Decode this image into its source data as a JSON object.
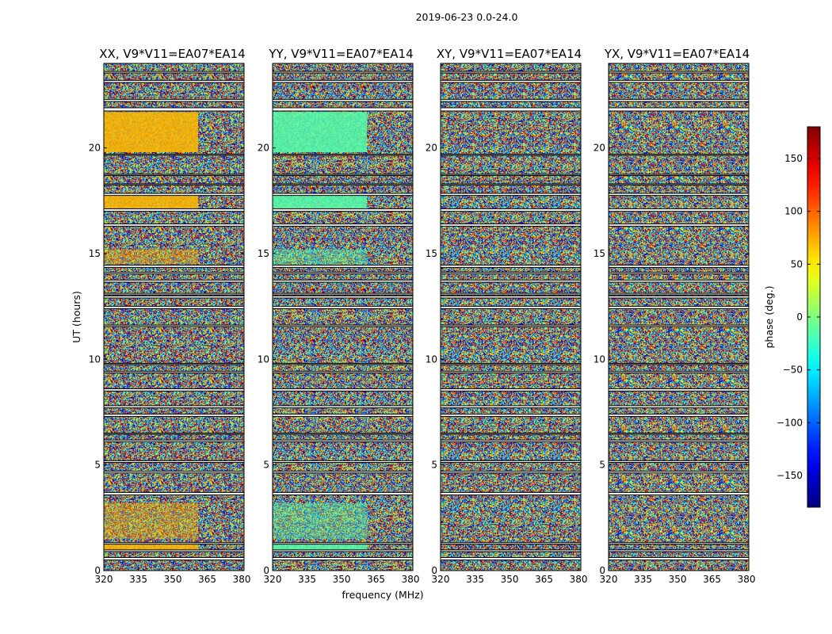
{
  "figure": {
    "title": "2019-06-23 0.0-24.0"
  },
  "chart_data": {
    "type": "heatmap",
    "title": "2019-06-23 0.0-24.0",
    "xlabel": "frequency (MHz)",
    "ylabel": "UT (hours)",
    "xlim": [
      320,
      381
    ],
    "ylim": [
      0,
      24
    ],
    "xticks": [
      320,
      335,
      350,
      365,
      380
    ],
    "xtick_labels": [
      "320",
      "335",
      "350",
      "365",
      "380"
    ],
    "yticks": [
      0,
      5,
      10,
      15,
      20
    ],
    "ytick_labels": [
      "0",
      "5",
      "10",
      "15",
      "20"
    ],
    "panels": [
      {
        "title": "XX, V9*V11=EA07*EA14",
        "pol": "XX"
      },
      {
        "title": "YY, V9*V11=EA07*EA14",
        "pol": "YY"
      },
      {
        "title": "XY, V9*V11=EA07*EA14",
        "pol": "XY"
      },
      {
        "title": "YX, V9*V11=EA07*EA14",
        "pol": "YX"
      }
    ],
    "colorbar": {
      "label": "phase (deg.)",
      "range": [
        -180,
        180
      ],
      "ticks": [
        -150,
        -100,
        -50,
        0,
        50,
        100,
        150
      ],
      "tick_labels": [
        "−150",
        "−100",
        "−50",
        "0",
        "50",
        "100",
        "150"
      ],
      "colormap": "jet"
    },
    "coherent_phase_deg": {
      "XX": 70,
      "YY": -15
    },
    "coherent_time_ranges_ut": [
      [
        0.9,
        1.25
      ],
      [
        17.1,
        17.75
      ],
      [
        19.8,
        21.7
      ]
    ],
    "partial_coherent_time_ranges_ut": [
      [
        1.5,
        3.2
      ],
      [
        14.5,
        15.2
      ]
    ],
    "coherent_freq_range_mhz": [
      320,
      361
    ],
    "flag_gaps_ut": [
      [
        0.5,
        0.62
      ],
      [
        0.9,
        0.98
      ],
      [
        1.25,
        1.32
      ],
      [
        3.58,
        3.7
      ],
      [
        4.62,
        4.7
      ],
      [
        5.12,
        5.2
      ],
      [
        6.1,
        6.18
      ],
      [
        6.45,
        6.5
      ],
      [
        7.3,
        7.4
      ],
      [
        7.7,
        7.8
      ],
      [
        8.5,
        8.6
      ],
      [
        9.35,
        9.42
      ],
      [
        9.75,
        9.8
      ],
      [
        11.55,
        11.62
      ],
      [
        12.4,
        12.5
      ],
      [
        12.9,
        13.0
      ],
      [
        13.05,
        13.12
      ],
      [
        13.65,
        13.75
      ],
      [
        14.05,
        14.12
      ],
      [
        14.35,
        14.45
      ],
      [
        16.3,
        16.4
      ],
      [
        17.0,
        17.12
      ],
      [
        17.75,
        17.85
      ],
      [
        18.25,
        18.3
      ],
      [
        18.7,
        18.75
      ],
      [
        19.65,
        19.7
      ],
      [
        21.75,
        21.9
      ],
      [
        22.2,
        22.3
      ],
      [
        23.1,
        23.2
      ],
      [
        23.55,
        23.62
      ]
    ]
  }
}
